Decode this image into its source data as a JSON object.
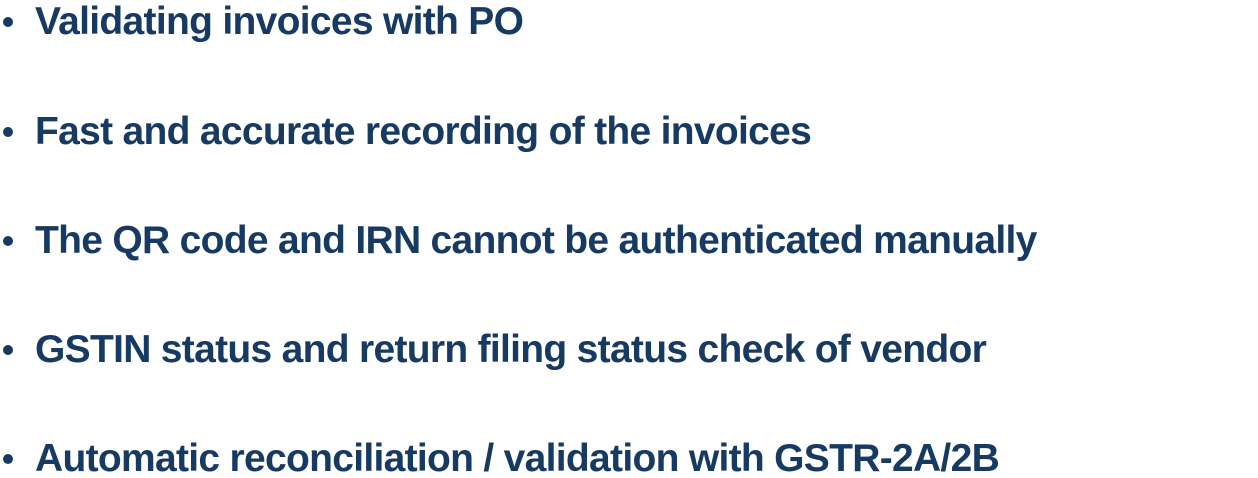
{
  "colors": {
    "text": "#173a63",
    "background": "#ffffff"
  },
  "bullets": [
    {
      "icon": "bullet-dot",
      "label": "Validating invoices with PO"
    },
    {
      "icon": "bullet-dot",
      "label": "Fast and accurate recording of the invoices"
    },
    {
      "icon": "bullet-dot",
      "label": "The QR code and IRN cannot be authenticated manually"
    },
    {
      "icon": "bullet-dot",
      "label": "GSTIN status and return filing status check of vendor"
    },
    {
      "icon": "bullet-dot",
      "label": "Automatic reconciliation / validation with GSTR-2A/2B"
    }
  ]
}
